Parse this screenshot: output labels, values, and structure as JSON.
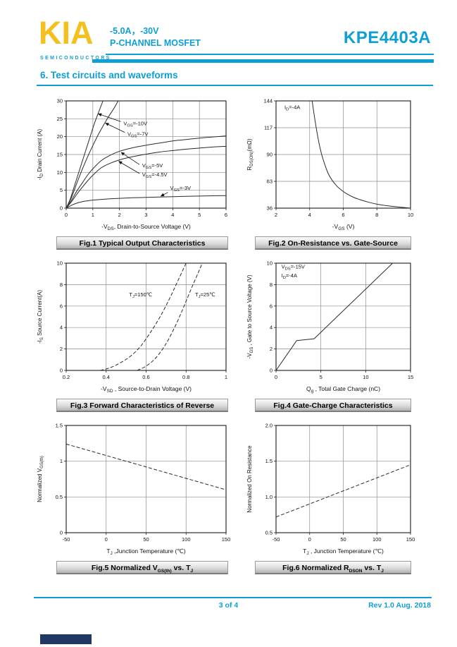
{
  "colors": {
    "accent": "#0d9fd6",
    "logo_yellow": "#f4c01e",
    "brand_navy": "#203864"
  },
  "header": {
    "logo_text": "KIA",
    "logo_sub": "SEMICONDUCTORS",
    "spec_line1": "-5.0A，-30V",
    "spec_line2": "P-CHANNEL MOSFET",
    "part_number": "KPE4403A"
  },
  "section": {
    "title": "6. Test circuits and waveforms"
  },
  "footer": {
    "page": "3 of 4",
    "revision": "Rev 1.0 Aug. 2018"
  },
  "chart_data": [
    {
      "type": "line",
      "caption": [
        {
          "t": "Fig.1 Typical Output Characteristics"
        }
      ],
      "xlabel": [
        {
          "t": "-V"
        },
        {
          "t": "DS",
          "sub": true
        },
        {
          "t": ", Drain-to-Source Voltage (V)"
        }
      ],
      "ylabel": [
        {
          "t": "-I"
        },
        {
          "t": "D",
          "sub": true
        },
        {
          "t": " Drain Current (A)"
        }
      ],
      "xlim": [
        0,
        6
      ],
      "ylim": [
        0,
        30
      ],
      "xticks": [
        0,
        1,
        2,
        3,
        4,
        5,
        6
      ],
      "yticks": [
        0,
        5,
        10,
        15,
        20,
        25,
        30
      ],
      "series": [
        {
          "name": "VGS=-10V",
          "smooth": true,
          "points": [
            [
              0,
              0
            ],
            [
              0.15,
              2.5
            ],
            [
              0.3,
              6
            ],
            [
              0.45,
              9.5
            ],
            [
              0.6,
              13
            ],
            [
              0.75,
              16.5
            ],
            [
              0.9,
              20
            ],
            [
              1.05,
              23.5
            ],
            [
              1.2,
              26.5
            ],
            [
              1.38,
              30
            ]
          ]
        },
        {
          "name": "VGS=-7V",
          "smooth": true,
          "points": [
            [
              0,
              0
            ],
            [
              0.2,
              3
            ],
            [
              0.4,
              7
            ],
            [
              0.6,
              10.8
            ],
            [
              0.8,
              14.3
            ],
            [
              1.0,
              17.5
            ],
            [
              1.2,
              20.5
            ],
            [
              1.4,
              23.2
            ],
            [
              1.6,
              25.7
            ],
            [
              1.8,
              28
            ],
            [
              1.95,
              30
            ]
          ]
        },
        {
          "name": "VGS=-5V",
          "smooth": true,
          "points": [
            [
              0,
              0
            ],
            [
              0.2,
              2.2
            ],
            [
              0.4,
              4.8
            ],
            [
              0.6,
              7
            ],
            [
              0.8,
              9.2
            ],
            [
              1.0,
              11
            ],
            [
              1.3,
              13.2
            ],
            [
              1.6,
              14.6
            ],
            [
              2.0,
              15.9
            ],
            [
              2.5,
              16.9
            ],
            [
              3.0,
              17.6
            ],
            [
              3.5,
              18.2
            ],
            [
              4.0,
              18.8
            ],
            [
              4.5,
              19.2
            ],
            [
              5.0,
              19.6
            ],
            [
              5.5,
              19.9
            ],
            [
              6.0,
              20.2
            ]
          ]
        },
        {
          "name": "VGS=-4.5V",
          "smooth": true,
          "points": [
            [
              0,
              0
            ],
            [
              0.2,
              1.8
            ],
            [
              0.4,
              3.9
            ],
            [
              0.6,
              5.8
            ],
            [
              0.8,
              7.6
            ],
            [
              1.0,
              9.2
            ],
            [
              1.3,
              11.2
            ],
            [
              1.6,
              12.4
            ],
            [
              2.0,
              13.5
            ],
            [
              2.5,
              14.4
            ],
            [
              3.0,
              15.1
            ],
            [
              3.5,
              15.7
            ],
            [
              4.0,
              16.1
            ],
            [
              4.5,
              16.5
            ],
            [
              5.0,
              16.8
            ],
            [
              5.5,
              17.1
            ],
            [
              6.0,
              17.3
            ]
          ]
        },
        {
          "name": "VGS=-3V",
          "smooth": true,
          "points": [
            [
              0,
              0
            ],
            [
              0.2,
              0.8
            ],
            [
              0.4,
              1.4
            ],
            [
              0.6,
              1.8
            ],
            [
              0.8,
              2.05
            ],
            [
              1.0,
              2.25
            ],
            [
              1.5,
              2.55
            ],
            [
              2.0,
              2.75
            ],
            [
              2.5,
              2.9
            ],
            [
              3.0,
              3.0
            ],
            [
              3.5,
              3.1
            ],
            [
              4.0,
              3.2
            ],
            [
              4.5,
              3.3
            ],
            [
              5.0,
              3.38
            ],
            [
              5.5,
              3.45
            ],
            [
              6.0,
              3.5
            ]
          ]
        }
      ],
      "annotations": [
        {
          "text": [
            {
              "t": "V"
            },
            {
              "t": "GS",
              "sub": true
            },
            {
              "t": "=-10V"
            }
          ],
          "x": 2.15,
          "y": 23.2,
          "arrow": {
            "fx": 2.05,
            "fy": 24.2,
            "tx": 1.2,
            "ty": 26.4
          }
        },
        {
          "text": [
            {
              "t": "V"
            },
            {
              "t": "GS",
              "sub": true
            },
            {
              "t": "=-7V"
            }
          ],
          "x": 2.3,
          "y": 20.2,
          "arrow": {
            "fx": 2.2,
            "fy": 21.2,
            "tx": 1.47,
            "ty": 23.8
          }
        },
        {
          "text": [
            {
              "t": "V"
            },
            {
              "t": "GS",
              "sub": true
            },
            {
              "t": "=-5V"
            }
          ],
          "x": 2.85,
          "y": 11.4,
          "arrow": {
            "fx": 2.75,
            "fy": 12.2,
            "tx": 2.06,
            "ty": 15.6
          }
        },
        {
          "text": [
            {
              "t": "V"
            },
            {
              "t": "GS",
              "sub": true
            },
            {
              "t": "=-4.5V"
            }
          ],
          "x": 2.85,
          "y": 8.9,
          "arrow": {
            "fx": 2.75,
            "fy": 9.7,
            "tx": 1.97,
            "ty": 13.1
          }
        },
        {
          "text": [
            {
              "t": "V"
            },
            {
              "t": "GS",
              "sub": true
            },
            {
              "t": "=-3V"
            }
          ],
          "x": 3.9,
          "y": 5.1,
          "arrow": {
            "fx": 3.82,
            "fy": 4.4,
            "tx": 3.55,
            "ty": 3.35
          }
        }
      ]
    },
    {
      "type": "line",
      "caption": [
        {
          "t": "Fig.2 On-Resistance vs. Gate-Source"
        }
      ],
      "xlabel": [
        {
          "t": "-V"
        },
        {
          "t": "GS",
          "sub": true
        },
        {
          "t": " (V)"
        }
      ],
      "ylabel": [
        {
          "t": "R"
        },
        {
          "t": "DS(ON)",
          "sub": true
        },
        {
          "t": "(mΩ)"
        }
      ],
      "xlim": [
        2,
        10
      ],
      "ylim": [
        36,
        144
      ],
      "xticks": [
        2,
        4,
        6,
        8,
        10
      ],
      "yticks": [
        36,
        63,
        90,
        117,
        144
      ],
      "series": [
        {
          "name": "RDS(ON)",
          "smooth": true,
          "points": [
            [
              4.15,
              144
            ],
            [
              4.25,
              132
            ],
            [
              4.4,
              116
            ],
            [
              4.55,
              102
            ],
            [
              4.7,
              91
            ],
            [
              4.9,
              80
            ],
            [
              5.1,
              71
            ],
            [
              5.3,
              65
            ],
            [
              5.6,
              58.5
            ],
            [
              5.9,
              54
            ],
            [
              6.2,
              50.5
            ],
            [
              6.6,
              47
            ],
            [
              7.0,
              44.5
            ],
            [
              7.5,
              42
            ],
            [
              8.0,
              40
            ],
            [
              8.5,
              38.7
            ],
            [
              9.0,
              37.7
            ],
            [
              9.5,
              36.8
            ],
            [
              10,
              36
            ]
          ]
        }
      ],
      "annotations": [
        {
          "text": [
            {
              "t": "I"
            },
            {
              "t": "D",
              "sub": true
            },
            {
              "t": "=-4A"
            }
          ],
          "x": 2.5,
          "y": 136
        }
      ]
    },
    {
      "type": "line",
      "caption": [
        {
          "t": "Fig.3 Forward Characteristics of Reverse"
        }
      ],
      "xlabel": [
        {
          "t": "-V"
        },
        {
          "t": "SD",
          "sub": true
        },
        {
          "t": " , Source-to-Drain Voltage (V)"
        }
      ],
      "ylabel": [
        {
          "t": "-I"
        },
        {
          "t": "S",
          "sub": true
        },
        {
          "t": " Source Current(A)"
        }
      ],
      "xlim": [
        0.2,
        1
      ],
      "ylim": [
        0,
        10
      ],
      "xticks": [
        0.2,
        0.4,
        0.6,
        0.8,
        1
      ],
      "yticks": [
        0,
        2,
        4,
        6,
        8,
        10
      ],
      "series": [
        {
          "name": "TJ=150C",
          "dash": true,
          "smooth": true,
          "points": [
            [
              0.37,
              0
            ],
            [
              0.42,
              0.25
            ],
            [
              0.47,
              0.7
            ],
            [
              0.52,
              1.3
            ],
            [
              0.57,
              2.2
            ],
            [
              0.62,
              3.5
            ],
            [
              0.67,
              5.0
            ],
            [
              0.72,
              6.8
            ],
            [
              0.76,
              8.4
            ],
            [
              0.8,
              10
            ]
          ]
        },
        {
          "name": "TJ=25C",
          "dash": true,
          "smooth": true,
          "points": [
            [
              0.555,
              0
            ],
            [
              0.6,
              0.4
            ],
            [
              0.65,
              1.2
            ],
            [
              0.7,
              2.5
            ],
            [
              0.75,
              4.3
            ],
            [
              0.79,
              6.0
            ],
            [
              0.83,
              7.8
            ],
            [
              0.87,
              9.5
            ],
            [
              0.88,
              10
            ]
          ]
        }
      ],
      "annotations": [
        {
          "text": [
            {
              "t": "T"
            },
            {
              "t": "J",
              "sub": true
            },
            {
              "t": "=150℃"
            }
          ],
          "x": 0.515,
          "y": 6.9
        },
        {
          "text": [
            {
              "t": "T"
            },
            {
              "t": "J",
              "sub": true
            },
            {
              "t": "=25℃"
            }
          ],
          "x": 0.845,
          "y": 6.9
        }
      ]
    },
    {
      "type": "line",
      "caption": [
        {
          "t": "Fig.4 Gate-Charge Characteristics"
        }
      ],
      "xlabel": [
        {
          "t": "Q"
        },
        {
          "t": "g",
          "sub": true
        },
        {
          "t": " , Total Gate Charge (nC)"
        }
      ],
      "ylabel": [
        {
          "t": "-V"
        },
        {
          "t": "GS",
          "sub": true
        },
        {
          "t": " , Gate to Source Voltage (V)"
        }
      ],
      "xlim": [
        0,
        15
      ],
      "ylim": [
        0,
        10
      ],
      "xticks": [
        0,
        5,
        10,
        15
      ],
      "yticks": [
        0,
        2,
        4,
        6,
        8,
        10
      ],
      "series": [
        {
          "name": "gate-charge",
          "smooth": false,
          "points": [
            [
              0,
              0
            ],
            [
              2.3,
              2.78
            ],
            [
              4.25,
              2.95
            ],
            [
              13.0,
              10
            ]
          ]
        }
      ],
      "annotations": [
        {
          "text": [
            {
              "t": "V"
            },
            {
              "t": "DS",
              "sub": true
            },
            {
              "t": "=-15V"
            }
          ],
          "x": 0.6,
          "y": 9.5
        },
        {
          "text": [
            {
              "t": "I"
            },
            {
              "t": "D",
              "sub": true
            },
            {
              "t": "=-4A"
            }
          ],
          "x": 0.6,
          "y": 8.7
        }
      ]
    },
    {
      "type": "line",
      "caption": [
        {
          "t": "Fig.5 Normalized V"
        },
        {
          "t": "GS(th)",
          "sub": true
        },
        {
          "t": " vs. T"
        },
        {
          "t": "J",
          "sub": true
        }
      ],
      "xlabel": [
        {
          "t": "T"
        },
        {
          "t": "J",
          "sub": true
        },
        {
          "t": " ,Junction Temperature (℃)"
        }
      ],
      "ylabel": [
        {
          "t": "Normalized V"
        },
        {
          "t": "GS(th)",
          "sub": true
        }
      ],
      "xlim": [
        -50,
        150
      ],
      "ylim": [
        0,
        1.5
      ],
      "xticks": [
        -50,
        0,
        50,
        100,
        150
      ],
      "yticks": [
        0,
        0.5,
        1,
        1.5
      ],
      "ytick_labels": [
        "0",
        "0.5",
        "1",
        "1.5"
      ],
      "series": [
        {
          "name": "normalized-vgsth",
          "dash": true,
          "smooth": false,
          "points": [
            [
              -50,
              1.24
            ],
            [
              150,
              0.6
            ]
          ]
        }
      ]
    },
    {
      "type": "line",
      "caption": [
        {
          "t": "Fig.6 Normalized R"
        },
        {
          "t": "DSON",
          "sub": true
        },
        {
          "t": " vs. T"
        },
        {
          "t": "J",
          "sub": true
        }
      ],
      "xlabel": [
        {
          "t": "T"
        },
        {
          "t": "J",
          "sub": true
        },
        {
          "t": " , Junction Temperature (℃)"
        }
      ],
      "ylabel": [
        {
          "t": "Normalized On Resistance"
        }
      ],
      "xlim": [
        -50,
        150
      ],
      "ylim": [
        0.5,
        2
      ],
      "xticks": [
        -50,
        0,
        50,
        100,
        150
      ],
      "yticks": [
        0.5,
        1.0,
        1.5,
        2.0
      ],
      "ytick_labels": [
        "0.5",
        "1.0",
        "1.5",
        "2.0"
      ],
      "series": [
        {
          "name": "normalized-rdson",
          "dash": true,
          "smooth": false,
          "points": [
            [
              -50,
              0.72
            ],
            [
              150,
              1.45
            ]
          ]
        }
      ]
    }
  ]
}
